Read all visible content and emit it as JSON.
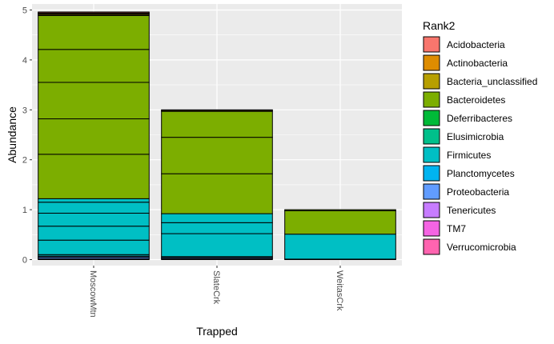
{
  "chart_data": {
    "type": "bar",
    "stacked": true,
    "xlabel": "Trapped",
    "ylabel": "Abundance",
    "ylim": [
      -0.12,
      5.12
    ],
    "yticks": [
      0,
      1,
      2,
      3,
      4,
      5
    ],
    "categories": [
      "MoscowMtn",
      "SlateCrk",
      "WeitasCrk"
    ],
    "grid": true,
    "legend_position": "right",
    "legend_title": "Rank2",
    "legend": [
      {
        "name": "Acidobacteria",
        "color": "#F8766D"
      },
      {
        "name": "Actinobacteria",
        "color": "#DE8C00"
      },
      {
        "name": "Bacteria_unclassified",
        "color": "#B79F00"
      },
      {
        "name": "Bacteroidetes",
        "color": "#7CAE00"
      },
      {
        "name": "Deferribacteres",
        "color": "#00BA38"
      },
      {
        "name": "Elusimicrobia",
        "color": "#00C08B"
      },
      {
        "name": "Firmicutes",
        "color": "#00BFC4"
      },
      {
        "name": "Planctomycetes",
        "color": "#00B4F0"
      },
      {
        "name": "Proteobacteria",
        "color": "#619CFF"
      },
      {
        "name": "Tenericutes",
        "color": "#C77CFF"
      },
      {
        "name": "TM7",
        "color": "#F564E3"
      },
      {
        "name": "Verrucomicrobia",
        "color": "#FF64B0"
      }
    ],
    "bars": [
      {
        "category": "MoscowMtn",
        "segments": [
          {
            "rank2": "Tenericutes",
            "value": 0.02
          },
          {
            "rank2": "Proteobacteria",
            "value": 0.03
          },
          {
            "rank2": "Proteobacteria",
            "value": 0.02
          },
          {
            "rank2": "Firmicutes",
            "value": 0.03
          },
          {
            "rank2": "Firmicutes",
            "value": 0.29
          },
          {
            "rank2": "Firmicutes",
            "value": 0.28
          },
          {
            "rank2": "Firmicutes",
            "value": 0.26
          },
          {
            "rank2": "Firmicutes",
            "value": 0.22
          },
          {
            "rank2": "Firmicutes",
            "value": 0.07
          },
          {
            "rank2": "Bacteroidetes",
            "value": 0.89
          },
          {
            "rank2": "Bacteroidetes",
            "value": 0.71
          },
          {
            "rank2": "Bacteroidetes",
            "value": 0.73
          },
          {
            "rank2": "Bacteroidetes",
            "value": 0.66
          },
          {
            "rank2": "Bacteroidetes",
            "value": 0.68
          },
          {
            "rank2": "Bacteria_unclassified",
            "value": 0.02
          },
          {
            "rank2": "Actinobacteria",
            "value": 0.02
          },
          {
            "rank2": "Actinobacteria",
            "value": 0.01
          },
          {
            "rank2": "Acidobacteria",
            "value": 0.02
          }
        ]
      },
      {
        "category": "SlateCrk",
        "segments": [
          {
            "rank2": "Proteobacteria",
            "value": 0.02
          },
          {
            "rank2": "Proteobacteria",
            "value": 0.02
          },
          {
            "rank2": "Firmicutes",
            "value": 0.02
          },
          {
            "rank2": "Firmicutes",
            "value": 0.46
          },
          {
            "rank2": "Firmicutes",
            "value": 0.22
          },
          {
            "rank2": "Firmicutes",
            "value": 0.18
          },
          {
            "rank2": "Bacteroidetes",
            "value": 0.8
          },
          {
            "rank2": "Bacteroidetes",
            "value": 0.73
          },
          {
            "rank2": "Bacteroidetes",
            "value": 0.52
          },
          {
            "rank2": "Bacteria_unclassified",
            "value": 0.02
          },
          {
            "rank2": "Actinobacteria",
            "value": 0.01
          }
        ]
      },
      {
        "category": "WeitasCrk",
        "segments": [
          {
            "rank2": "Proteobacteria",
            "value": 0.01
          },
          {
            "rank2": "Firmicutes",
            "value": 0.5
          },
          {
            "rank2": "Bacteroidetes",
            "value": 0.47
          },
          {
            "rank2": "Bacteroidetes",
            "value": 0.02
          }
        ]
      }
    ]
  }
}
